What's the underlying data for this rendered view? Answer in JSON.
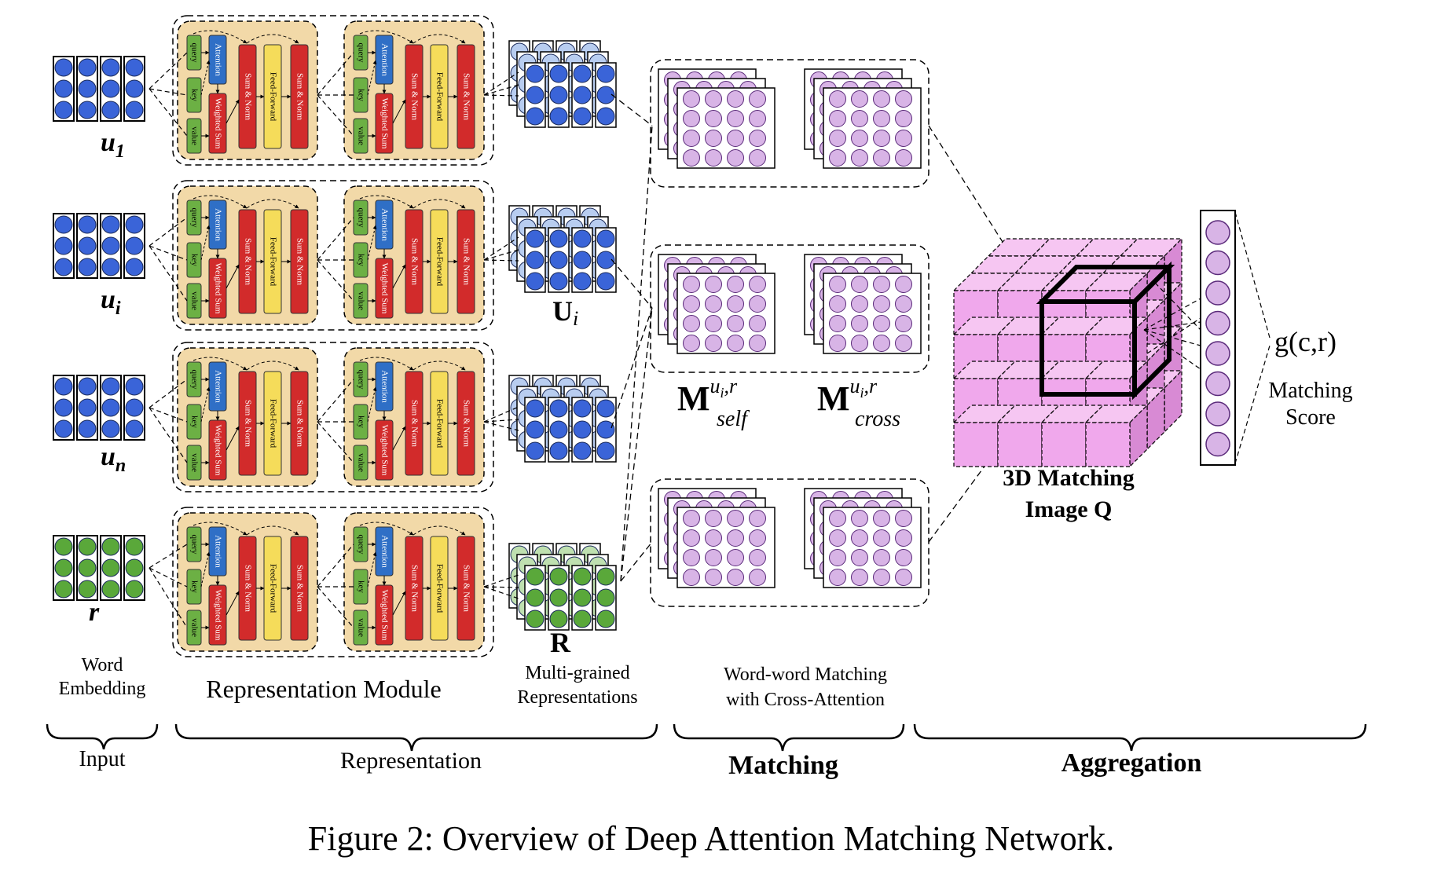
{
  "inputs": [
    {
      "id": "u1",
      "base": "u",
      "sub": "1",
      "color": "#3a64d8",
      "kind": "utterance"
    },
    {
      "id": "ui",
      "base": "u",
      "sub": "i",
      "color": "#3a64d8",
      "kind": "utterance"
    },
    {
      "id": "un",
      "base": "u",
      "sub": "n",
      "color": "#3a64d8",
      "kind": "utterance"
    },
    {
      "id": "r",
      "base": "r",
      "sub": "",
      "color": "#5aa83a",
      "kind": "response"
    }
  ],
  "block_labels": {
    "query": "query",
    "key": "key",
    "value": "value",
    "attention": "Attention",
    "weighted_sum": "Weighted Sum",
    "sum_norm": "Sum & Norm",
    "feed_forward": "Feed-Forward"
  },
  "representation_labels": {
    "Ui_base": "U",
    "Ui_sub": "i",
    "R": "R",
    "multi_grained_line1": "Multi-grained",
    "multi_grained_line2": "Representations"
  },
  "matching_labels": {
    "M_base": "M",
    "self_sup": "u",
    "self_sup_sub": "i",
    "self_sup_rest": ",r",
    "self_sub": "self",
    "cross_sub": "cross",
    "word_word_line1": "Word-word Matching",
    "word_word_line2": "with Cross-Attention"
  },
  "aggregation_labels": {
    "image_line1": "3D Matching",
    "image_line2": "Image Q",
    "score_fn": "g(c,r)",
    "score_line1": "Matching",
    "score_line2": "Score"
  },
  "section_labels": {
    "word_embedding_line1": "Word",
    "word_embedding_line2": "Embedding",
    "representation_module": "Representation Module",
    "input": "Input",
    "representation": "Representation",
    "matching": "Matching",
    "aggregation": "Aggregation"
  },
  "caption": "Figure 2: Overview of Deep Attention Matching Network.",
  "colors": {
    "utterance_blue": "#3a64d8",
    "response_green": "#5aa83a",
    "block_green": "#6cb044",
    "block_blue": "#2f6fc6",
    "block_red": "#d22b2b",
    "block_yellow": "#f5dc5a",
    "module_bg": "#f2d9a8",
    "matching_purple": "#d8b4e6",
    "cube_pink": "#f0a8ec",
    "score_circle": "#d8b4e6"
  }
}
